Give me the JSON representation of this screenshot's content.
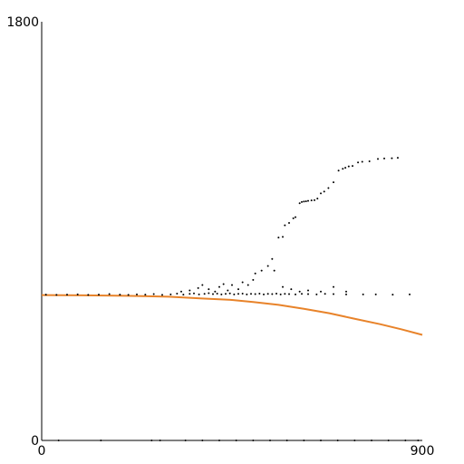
{
  "chart_data": {
    "type": "scatter",
    "title": "",
    "xlabel": "",
    "ylabel": "",
    "xlim": [
      0,
      900
    ],
    "ylim": [
      0,
      1800
    ],
    "grid": false,
    "x_ticks": [
      {
        "value": 0,
        "label": "0"
      },
      {
        "value": 900,
        "label": "900"
      }
    ],
    "y_ticks": [
      {
        "value": 0,
        "label": "0"
      },
      {
        "value": 1800,
        "label": "1800"
      }
    ],
    "series": [
      {
        "kind": "line",
        "color": "#e8832a",
        "points": [
          [
            0,
            625
          ],
          [
            100,
            624
          ],
          [
            200,
            622
          ],
          [
            300,
            618
          ],
          [
            380,
            610
          ],
          [
            450,
            604
          ],
          [
            500,
            595
          ],
          [
            560,
            583
          ],
          [
            620,
            566
          ],
          [
            680,
            547
          ],
          [
            740,
            523
          ],
          [
            800,
            500
          ],
          [
            850,
            478
          ],
          [
            900,
            454
          ]
        ]
      },
      {
        "kind": "scatter",
        "color": "#000000",
        "points": [
          [
            10,
            627
          ],
          [
            35,
            626
          ],
          [
            60,
            627
          ],
          [
            85,
            628
          ],
          [
            110,
            626
          ],
          [
            135,
            627
          ],
          [
            160,
            629
          ],
          [
            185,
            627
          ],
          [
            205,
            626
          ],
          [
            225,
            628
          ],
          [
            245,
            627
          ],
          [
            265,
            629
          ],
          [
            285,
            626
          ],
          [
            305,
            628
          ],
          [
            320,
            631
          ],
          [
            335,
            627
          ],
          [
            350,
            630
          ],
          [
            360,
            632
          ],
          [
            372,
            628
          ],
          [
            385,
            630
          ],
          [
            395,
            633
          ],
          [
            405,
            629
          ],
          [
            415,
            631
          ],
          [
            425,
            628
          ],
          [
            435,
            630
          ],
          [
            445,
            632
          ],
          [
            455,
            628
          ],
          [
            465,
            630
          ],
          [
            475,
            631
          ],
          [
            485,
            628
          ],
          [
            495,
            630
          ],
          [
            505,
            629
          ],
          [
            515,
            631
          ],
          [
            525,
            628
          ],
          [
            535,
            630
          ],
          [
            545,
            629
          ],
          [
            555,
            631
          ],
          [
            565,
            628
          ],
          [
            575,
            630
          ],
          [
            585,
            629
          ],
          [
            600,
            628
          ],
          [
            615,
            630
          ],
          [
            630,
            629
          ],
          [
            650,
            628
          ],
          [
            670,
            630
          ],
          [
            690,
            629
          ],
          [
            720,
            628
          ],
          [
            760,
            628
          ],
          [
            790,
            628
          ],
          [
            830,
            627
          ],
          [
            870,
            628
          ],
          [
            330,
            640
          ],
          [
            350,
            645
          ],
          [
            370,
            655
          ],
          [
            380,
            668
          ],
          [
            395,
            650
          ],
          [
            410,
            640
          ],
          [
            420,
            660
          ],
          [
            430,
            672
          ],
          [
            440,
            645
          ],
          [
            450,
            668
          ],
          [
            465,
            650
          ],
          [
            475,
            680
          ],
          [
            488,
            668
          ],
          [
            500,
            690
          ],
          [
            505,
            718
          ],
          [
            520,
            730
          ],
          [
            535,
            750
          ],
          [
            550,
            730
          ],
          [
            570,
            660
          ],
          [
            590,
            650
          ],
          [
            610,
            640
          ],
          [
            630,
            645
          ],
          [
            660,
            640
          ],
          [
            690,
            660
          ],
          [
            720,
            640
          ],
          [
            545,
            780
          ],
          [
            560,
            872
          ],
          [
            570,
            875
          ],
          [
            575,
            925
          ],
          [
            585,
            935
          ],
          [
            595,
            955
          ],
          [
            600,
            960
          ],
          [
            610,
            1020
          ],
          [
            615,
            1025
          ],
          [
            620,
            1027
          ],
          [
            625,
            1028
          ],
          [
            630,
            1030
          ],
          [
            638,
            1032
          ],
          [
            645,
            1033
          ],
          [
            652,
            1040
          ],
          [
            660,
            1062
          ],
          [
            668,
            1070
          ],
          [
            678,
            1085
          ],
          [
            690,
            1110
          ],
          [
            702,
            1160
          ],
          [
            712,
            1168
          ],
          [
            718,
            1172
          ],
          [
            726,
            1178
          ],
          [
            735,
            1180
          ],
          [
            748,
            1195
          ],
          [
            758,
            1198
          ],
          [
            775,
            1200
          ],
          [
            795,
            1210
          ],
          [
            810,
            1212
          ],
          [
            828,
            1213
          ],
          [
            842,
            1215
          ],
          [
            40,
            0
          ],
          [
            140,
            0
          ],
          [
            260,
            0
          ],
          [
            280,
            0
          ],
          [
            340,
            0
          ],
          [
            380,
            0
          ],
          [
            420,
            0
          ],
          [
            460,
            0
          ],
          [
            500,
            0
          ],
          [
            540,
            0
          ],
          [
            580,
            0
          ],
          [
            620,
            0
          ],
          [
            660,
            0
          ],
          [
            700,
            0
          ],
          [
            740,
            0
          ],
          [
            780,
            0
          ],
          [
            820,
            0
          ],
          [
            860,
            0
          ],
          [
            890,
            0
          ]
        ]
      }
    ]
  }
}
